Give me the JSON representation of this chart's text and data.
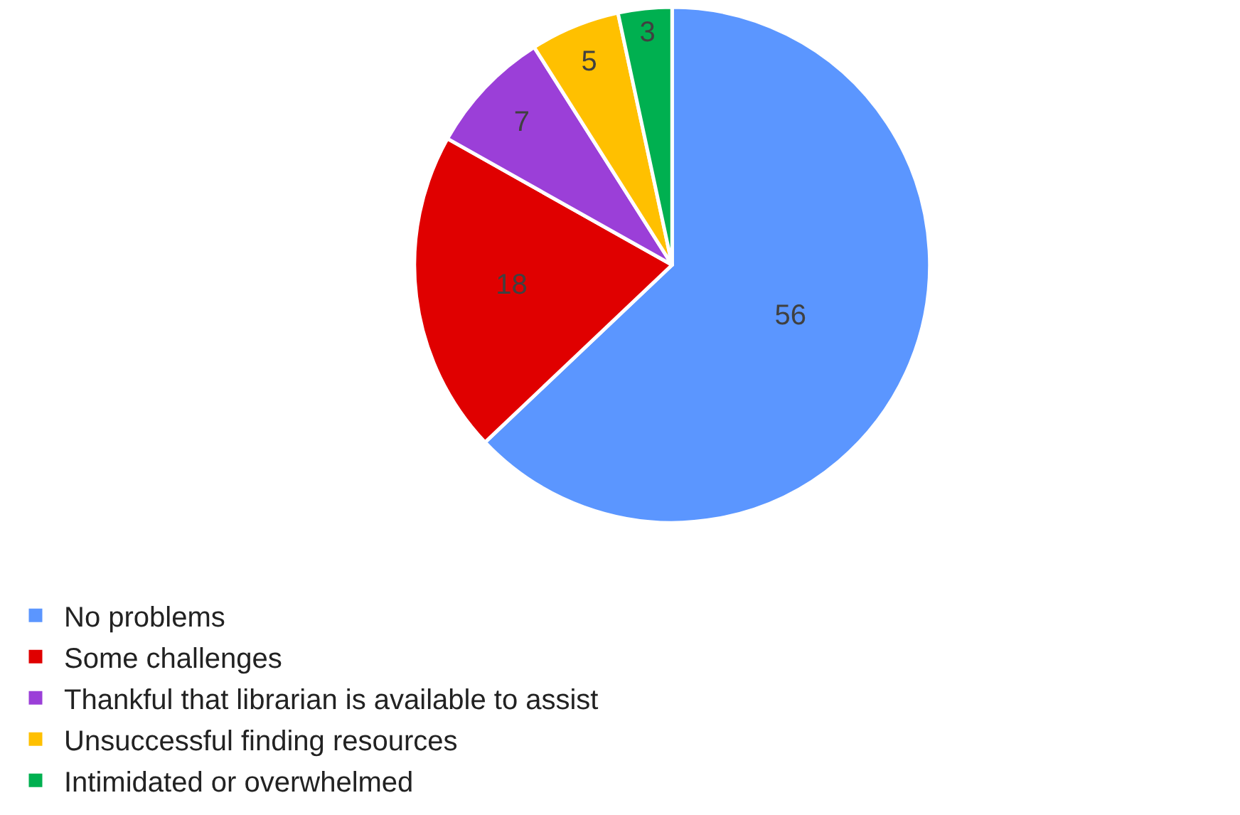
{
  "chart_data": {
    "type": "pie",
    "categories": [
      "No problems",
      "Some challenges",
      "Thankful that librarian is available to assist",
      "Unsuccessful finding resources",
      "Intimidated or overwhelmed"
    ],
    "values": [
      56,
      18,
      7,
      5,
      3
    ],
    "colors": [
      "#5b96ff",
      "#e00000",
      "#9b3fd8",
      "#ffc000",
      "#00b050"
    ],
    "data_labels": true,
    "legend": "bottom"
  }
}
